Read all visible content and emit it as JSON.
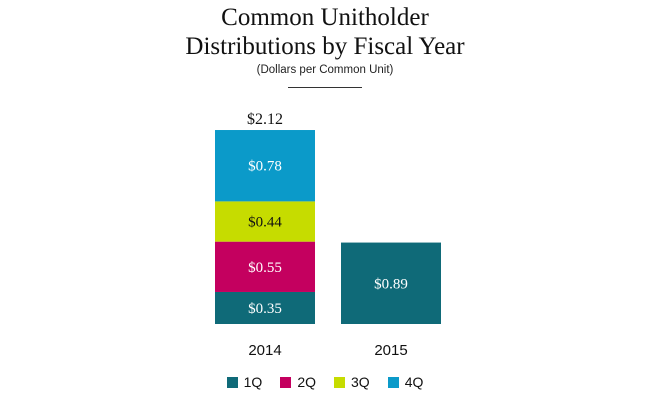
{
  "chart_data": {
    "type": "bar",
    "stacked": true,
    "title": "Common Unitholder\nDistributions by Fiscal Year",
    "title_lines": [
      "Common Unitholder",
      "Distributions by Fiscal Year"
    ],
    "subtitle": "(Dollars per Common Unit)",
    "categories": [
      "2014",
      "2015"
    ],
    "series": [
      {
        "name": "1Q",
        "color": "#0f6a78",
        "values": [
          0.35,
          0.89
        ],
        "labels": [
          "$0.35",
          "$0.89"
        ]
      },
      {
        "name": "2Q",
        "color": "#c4005f",
        "values": [
          0.55,
          null
        ],
        "labels": [
          "$0.55",
          ""
        ]
      },
      {
        "name": "3Q",
        "color": "#c6dc00",
        "values": [
          0.44,
          null
        ],
        "labels": [
          "$0.44",
          ""
        ]
      },
      {
        "name": "4Q",
        "color": "#0b9ac9",
        "values": [
          0.78,
          null
        ],
        "labels": [
          "$0.78",
          ""
        ]
      }
    ],
    "totals": [
      "$2.12",
      ""
    ],
    "grid": false,
    "legend_position": "bottom"
  }
}
